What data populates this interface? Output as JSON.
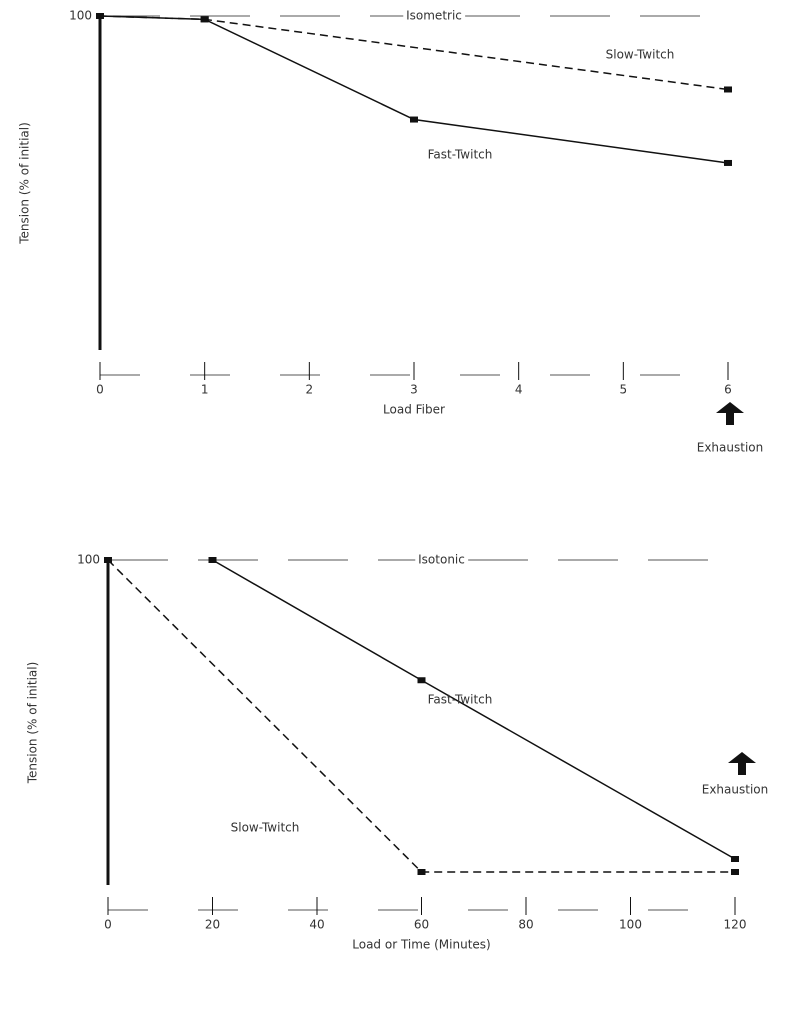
{
  "chart_data": [
    {
      "type": "line",
      "title": "Isometric",
      "x_label": "Load Fiber",
      "y_label": "Tension (% of initial)",
      "annotation": "Exhaustion",
      "x": [
        0,
        1,
        3,
        6
      ],
      "series": [
        {
          "name": "Slow-Twitch",
          "color": "#111111",
          "dash": true,
          "values": [
            100,
            99,
            null,
            78
          ]
        },
        {
          "name": "Fast-Twitch",
          "color": "#111111",
          "dash": false,
          "values": [
            100,
            99,
            69,
            56
          ]
        }
      ],
      "xlim": [
        0,
        6
      ],
      "xticks": [
        0,
        1,
        2,
        3,
        4,
        5,
        6
      ],
      "ylim": [
        0,
        100
      ],
      "yticks": [
        100
      ]
    },
    {
      "type": "line",
      "title": "Isotonic",
      "x_label": "Load or Time (Minutes)",
      "y_label": "Tension (% of initial)",
      "annotation": "Exhaustion",
      "x": [
        0,
        20,
        60,
        120
      ],
      "series": [
        {
          "name": "Fast-Twitch",
          "color": "#111111",
          "dash": false,
          "values": [
            null,
            100,
            63,
            8
          ]
        },
        {
          "name": "Slow-Twitch",
          "color": "#111111",
          "dash": true,
          "values": [
            100,
            null,
            4,
            4
          ]
        }
      ],
      "xlim": [
        0,
        120
      ],
      "xticks": [
        0,
        20,
        40,
        60,
        80,
        100,
        120
      ],
      "ylim": [
        0,
        100
      ],
      "yticks": [
        100
      ]
    }
  ]
}
